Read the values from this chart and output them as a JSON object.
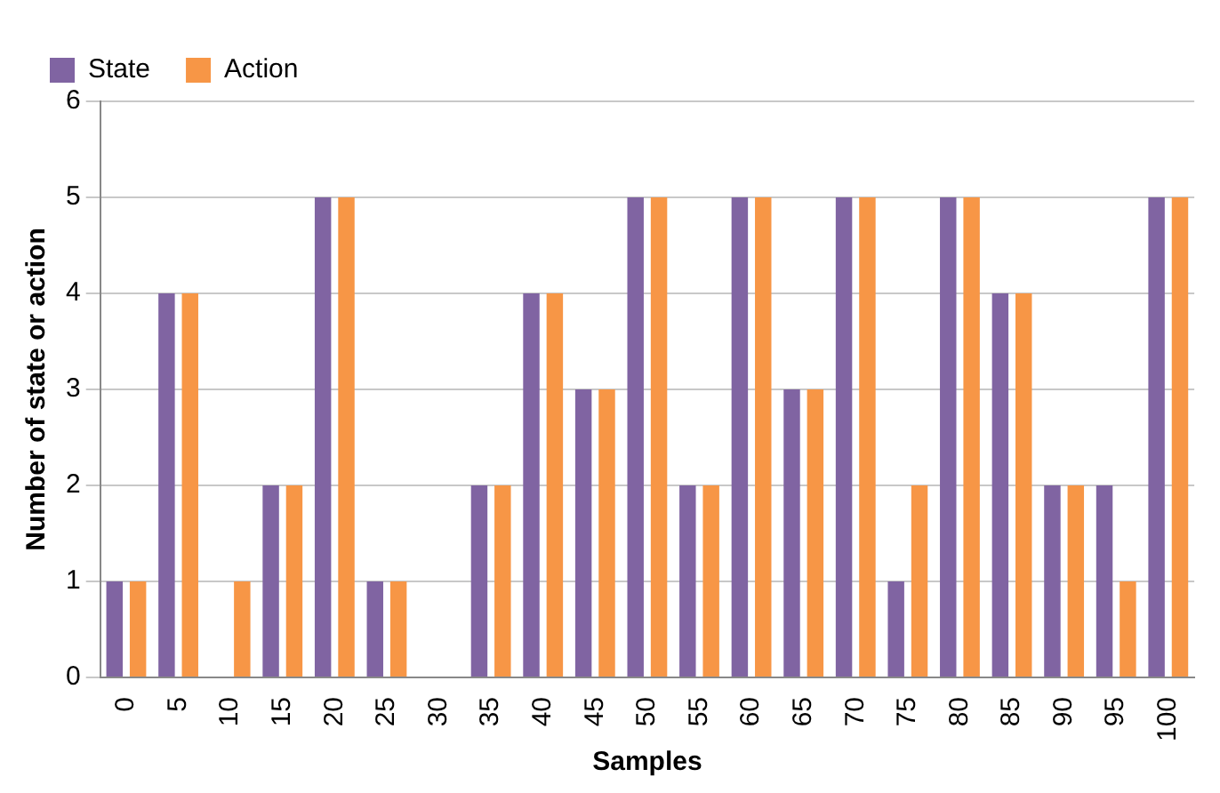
{
  "chart_data": {
    "type": "bar",
    "xlabel": "Samples",
    "ylabel": "Number of state or action",
    "categories": [
      "0",
      "5",
      "10",
      "15",
      "20",
      "25",
      "30",
      "35",
      "40",
      "45",
      "50",
      "55",
      "60",
      "65",
      "70",
      "75",
      "80",
      "85",
      "90",
      "95",
      "100"
    ],
    "series": [
      {
        "name": "State",
        "color": "#8064a2",
        "values": [
          1,
          4,
          0,
          2,
          5,
          1,
          0,
          2,
          4,
          3,
          5,
          2,
          5,
          3,
          5,
          1,
          5,
          4,
          2,
          2,
          5
        ]
      },
      {
        "name": "Action",
        "color": "#f79646",
        "values": [
          1,
          4,
          1,
          2,
          5,
          1,
          0,
          2,
          4,
          3,
          5,
          2,
          5,
          3,
          5,
          2,
          5,
          4,
          2,
          1,
          5
        ]
      }
    ],
    "ylim": [
      0,
      6
    ],
    "yticks": [
      0,
      1,
      2,
      3,
      4,
      5,
      6
    ],
    "grid": "y",
    "legend": "top left"
  }
}
